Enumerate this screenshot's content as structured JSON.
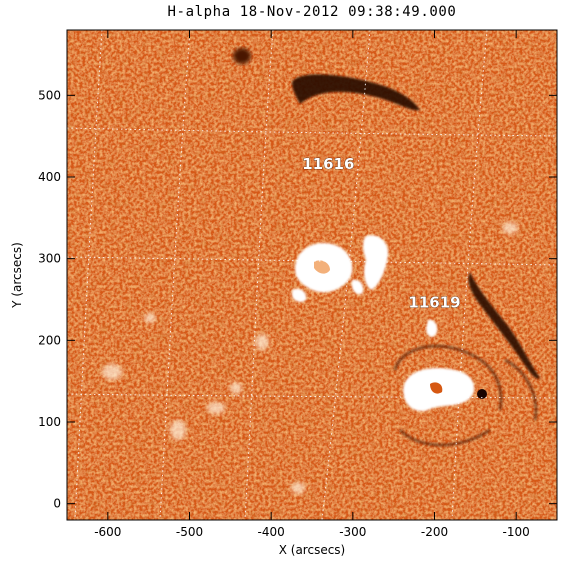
{
  "title": "H-alpha 18-Nov-2012 09:38:49.000",
  "axes": {
    "xlabel": "X (arcsecs)",
    "ylabel": "Y (arcsecs)",
    "xlim": [
      -650,
      -50
    ],
    "ylim": [
      -20,
      580
    ],
    "xticks": [
      -600,
      -500,
      -400,
      -300,
      -200,
      -100
    ],
    "yticks": [
      0,
      100,
      200,
      300,
      400,
      500
    ]
  },
  "active_regions": [
    {
      "label": "11616",
      "x": -330,
      "y": 410
    },
    {
      "label": "11619",
      "x": -200,
      "y": 240
    }
  ],
  "colors": {
    "background": "#d85a14",
    "bright": "#ffffff",
    "dark": "#2a0a00",
    "grid": "#ffffff"
  }
}
